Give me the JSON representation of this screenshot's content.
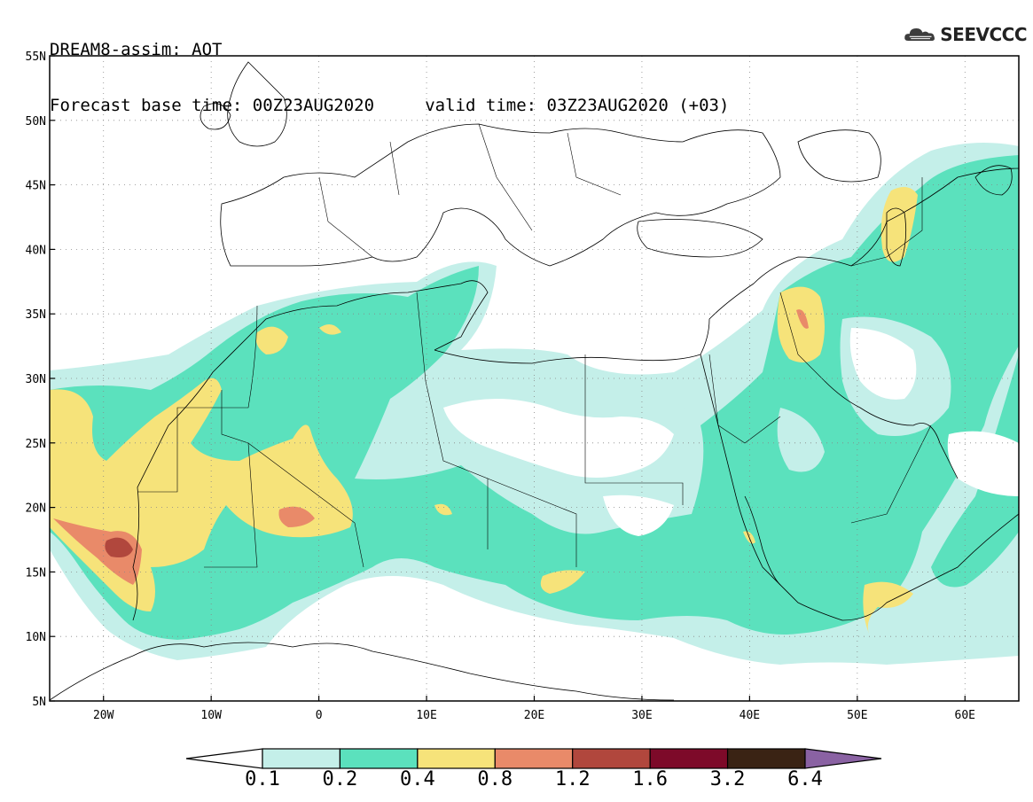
{
  "header": {
    "line1": "DREAM8-assim: AOT",
    "line2": "Forecast base time: 00Z23AUG2020     valid time: 03Z23AUG2020 (+03)"
  },
  "logo": {
    "text": "SEEVCCC",
    "icon": "cloud-icon"
  },
  "map": {
    "lat_ticks": [
      "55N",
      "50N",
      "45N",
      "40N",
      "35N",
      "30N",
      "25N",
      "20N",
      "15N",
      "10N",
      "5N"
    ],
    "lon_ticks": [
      "20W",
      "10W",
      "0",
      "10E",
      "20E",
      "30E",
      "40E",
      "50E",
      "60E"
    ],
    "extent": {
      "lon_min": -25,
      "lon_max": 65,
      "lat_min": 5,
      "lat_max": 55
    }
  },
  "colorbar": {
    "labels": [
      "0.1",
      "0.2",
      "0.4",
      "0.8",
      "1.2",
      "1.6",
      "3.2",
      "6.4"
    ],
    "colors": [
      "#c4efe9",
      "#5be1bd",
      "#f6e37a",
      "#e98a69",
      "#b1473d",
      "#7d0a29",
      "#3a2314",
      "#8a62a3"
    ]
  }
}
